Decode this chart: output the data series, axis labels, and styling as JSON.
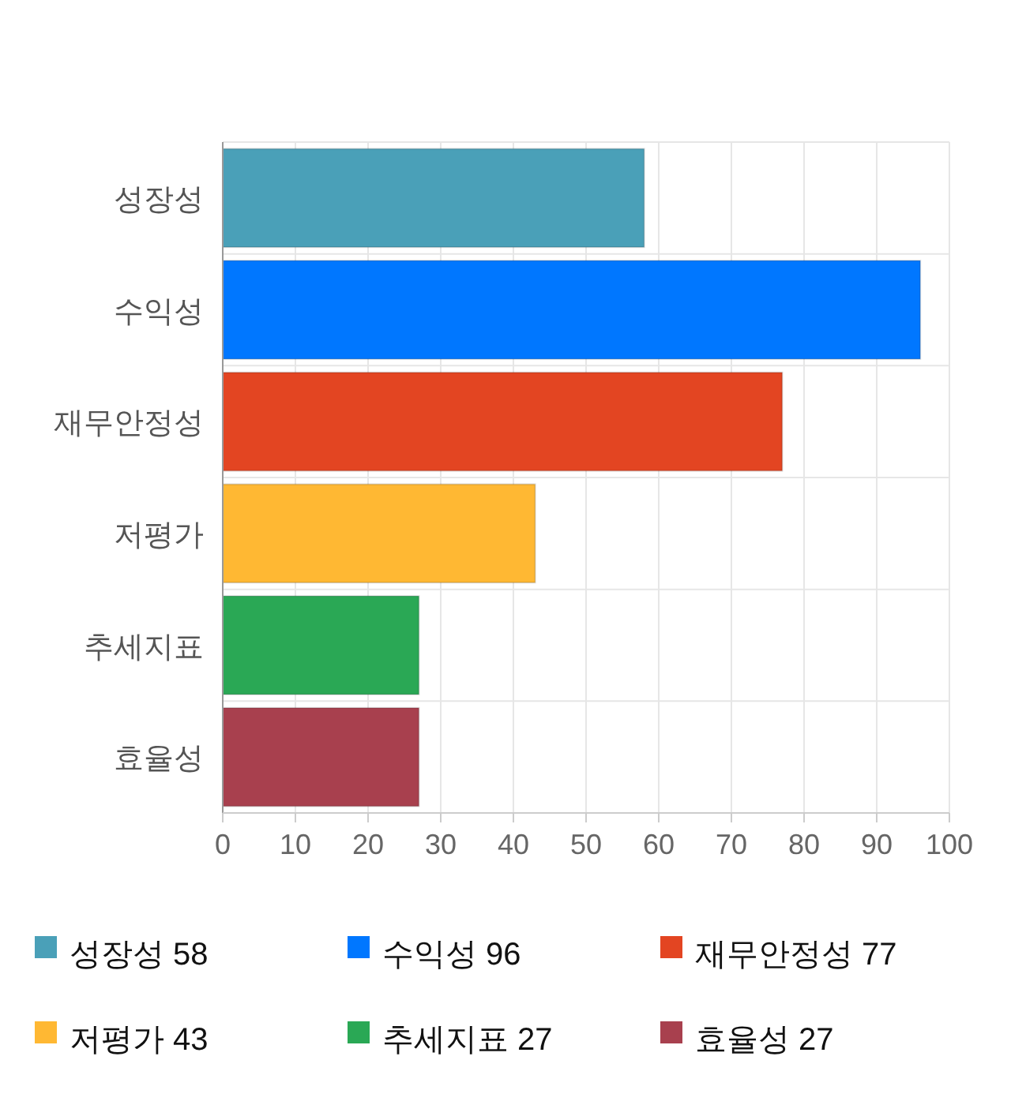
{
  "chart_data": {
    "type": "bar",
    "orientation": "horizontal",
    "stacked": true,
    "categories": [
      "성장성",
      "수익성",
      "재무안정성",
      "저평가",
      "추세지표",
      "효율성"
    ],
    "series": [
      {
        "name": "성장성 58",
        "color": "#4aa0b8",
        "values": [
          58,
          null,
          null,
          null,
          null,
          null
        ]
      },
      {
        "name": "수익성 96",
        "color": "#0077ff",
        "values": [
          null,
          96,
          null,
          null,
          null,
          null
        ]
      },
      {
        "name": "재무안정성 77",
        "color": "#e34522",
        "values": [
          null,
          null,
          77,
          null,
          null,
          null
        ]
      },
      {
        "name": "저평가 43",
        "color": "#ffb833",
        "values": [
          null,
          null,
          null,
          43,
          null,
          null
        ]
      },
      {
        "name": "추세지표 27",
        "color": "#2aa855",
        "values": [
          null,
          null,
          null,
          null,
          27,
          null
        ]
      },
      {
        "name": "효율성 27",
        "color": "#a8404e",
        "values": [
          null,
          null,
          null,
          null,
          null,
          27
        ]
      }
    ],
    "xlim": [
      0,
      100
    ],
    "xticks": [
      0,
      10,
      20,
      30,
      40,
      50,
      60,
      70,
      80,
      90,
      100
    ],
    "grid": true,
    "legend": "bottom"
  }
}
